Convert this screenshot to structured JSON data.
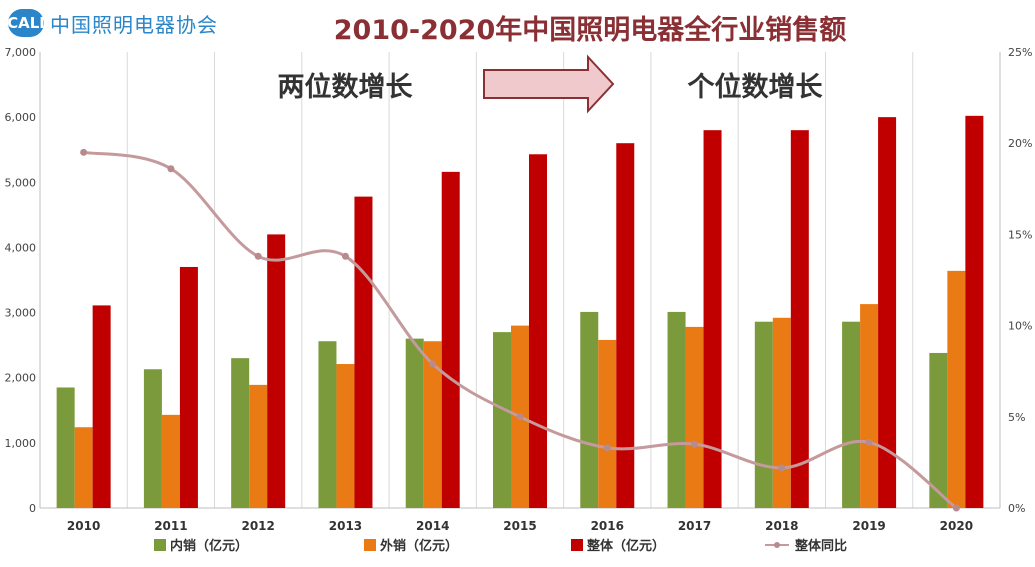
{
  "header": {
    "logo_mark": "CALI",
    "logo_text": "中国照明电器协会"
  },
  "chart_data": {
    "type": "bar",
    "title": "2010-2020年中国照明电器全行业销售额",
    "categories": [
      "2010",
      "2011",
      "2012",
      "2013",
      "2014",
      "2015",
      "2016",
      "2017",
      "2018",
      "2019",
      "2020"
    ],
    "series": [
      {
        "name": "内销（亿元）",
        "type": "bar",
        "axis": "left",
        "color": "#7a9a3c",
        "values": [
          1850,
          2130,
          2300,
          2560,
          2600,
          2700,
          3010,
          3010,
          2860,
          2860,
          2380
        ]
      },
      {
        "name": "外销（亿元）",
        "type": "bar",
        "axis": "left",
        "color": "#e97a14",
        "values": [
          1240,
          1430,
          1890,
          2210,
          2560,
          2800,
          2580,
          2780,
          2920,
          3130,
          3640
        ]
      },
      {
        "name": "整体（亿元）",
        "type": "bar",
        "axis": "left",
        "color": "#c00000",
        "values": [
          3110,
          3700,
          4200,
          4780,
          5160,
          5430,
          5600,
          5800,
          5800,
          6000,
          6020
        ]
      },
      {
        "name": "整体同比",
        "type": "line",
        "axis": "right",
        "color": "#c49a9c",
        "values": [
          19.5,
          18.6,
          13.8,
          13.8,
          7.9,
          5.0,
          3.3,
          3.5,
          2.2,
          3.6,
          0
        ]
      }
    ],
    "left_axis": {
      "min": 0,
      "max": 7000,
      "ticks": [
        "0",
        "1,000",
        "2,000",
        "3,000",
        "4,000",
        "5,000",
        "6,000",
        "7,000"
      ]
    },
    "right_axis": {
      "min": 0,
      "max": 25,
      "ticks": [
        "0%",
        "5%",
        "10%",
        "15%",
        "20%",
        "25%"
      ]
    },
    "grid": "vertical",
    "legend_position": "bottom",
    "annotations": {
      "left_text": "两位数增长",
      "right_text": "个位数增长"
    }
  }
}
